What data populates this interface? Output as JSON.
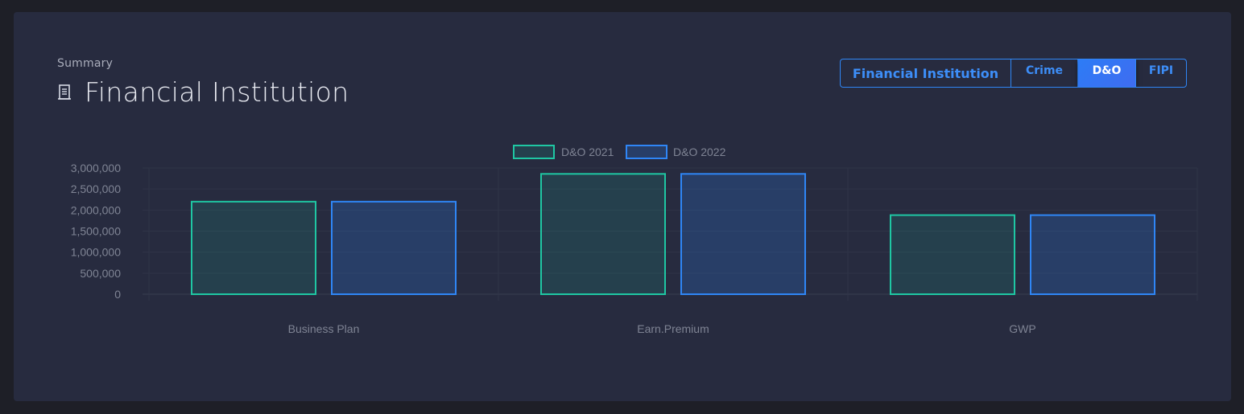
{
  "header": {
    "subtitle": "Summary",
    "title": "Financial Institution",
    "title_icon": "document-icon"
  },
  "tabs": [
    {
      "label": "Financial Institution",
      "active": false
    },
    {
      "label": "Crime",
      "active": false
    },
    {
      "label": "D&O",
      "active": true
    },
    {
      "label": "FIPI",
      "active": false
    }
  ],
  "colors": {
    "series_2021": "#1fc7a3",
    "series_2022": "#2f86f6",
    "accent": "#2f86f6"
  },
  "chart_data": {
    "type": "bar",
    "categories": [
      "Business Plan",
      "Earn.Premium",
      "GWP"
    ],
    "series": [
      {
        "name": "D&O 2021",
        "values": [
          2200000,
          2860000,
          1880000
        ]
      },
      {
        "name": "D&O 2022",
        "values": [
          2200000,
          2860000,
          1880000
        ]
      }
    ],
    "yticks": [
      "0",
      "500,000",
      "1,000,000",
      "1,500,000",
      "2,000,000",
      "2,500,000",
      "3,000,000"
    ],
    "ylim": [
      0,
      3000000
    ],
    "legend_position": "top-center",
    "grid": true
  }
}
